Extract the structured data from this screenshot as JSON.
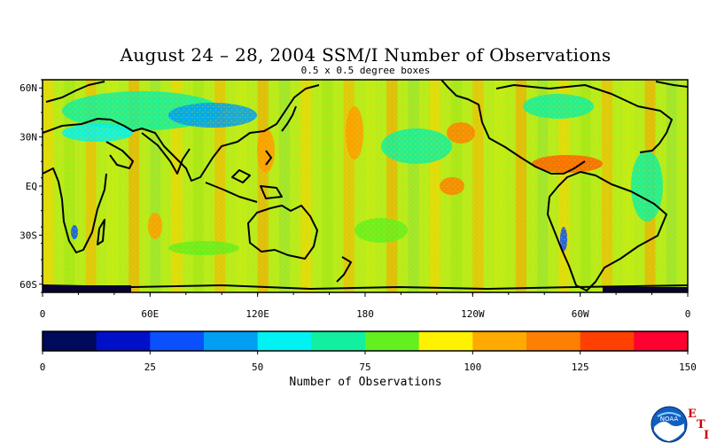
{
  "title": "August 24 – 28, 2004 SSM/I Number of Observations",
  "subtitle": "0.5 x 0.5 degree boxes",
  "map": {
    "lat_labels": [
      "60N",
      "30N",
      "EQ",
      "30S",
      "60S"
    ],
    "lon_labels": [
      "0",
      "60E",
      "120E",
      "180",
      "120W",
      "60W",
      "0"
    ]
  },
  "colorbar": {
    "title": "Number of Observations",
    "tick_labels": [
      "0",
      "25",
      "50",
      "75",
      "100",
      "125",
      "150"
    ],
    "colors": [
      "#000a5a",
      "#0010c8",
      "#0a50ff",
      "#009ff2",
      "#00f2f2",
      "#10f0a0",
      "#64f01e",
      "#fff200",
      "#ffaa00",
      "#ff8000",
      "#ff4000",
      "#ff0030"
    ]
  },
  "logo": {
    "icon": "noaa-logo",
    "text": "NOAA"
  },
  "eti": {
    "e": "E",
    "t": "T",
    "i": "I"
  }
}
